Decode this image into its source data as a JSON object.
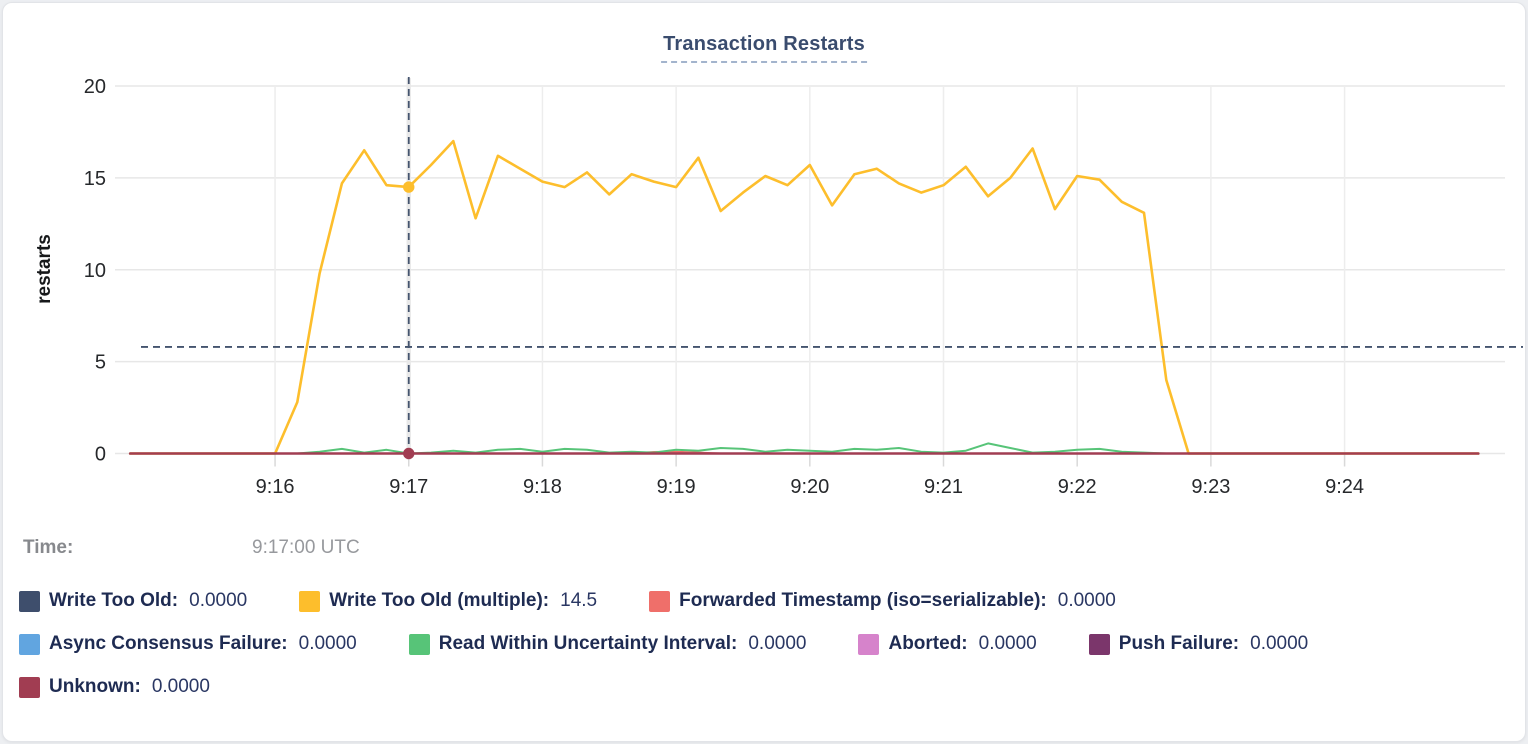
{
  "title": "Transaction Restarts",
  "tooltip": {
    "time_label": "Time:",
    "time_value": "9:17:00 UTC"
  },
  "legend": {
    "rows": [
      [
        {
          "label": "Write Too Old:",
          "value": "0.0000",
          "color": "#3E4E6C"
        },
        {
          "label": "Write Too Old (multiple):",
          "value": "14.5",
          "color": "#FDBE2C"
        },
        {
          "label": "Forwarded Timestamp (iso=serializable):",
          "value": "0.0000",
          "color": "#EF6F6A"
        }
      ],
      [
        {
          "label": "Async Consensus Failure:",
          "value": "0.0000",
          "color": "#61A5E0"
        },
        {
          "label": "Read Within Uncertainty Interval:",
          "value": "0.0000",
          "color": "#57C478"
        },
        {
          "label": "Aborted:",
          "value": "0.0000",
          "color": "#D683CB"
        },
        {
          "label": "Push Failure:",
          "value": "0.0000",
          "color": "#7B366B"
        }
      ],
      [
        {
          "label": "Unknown:",
          "value": "0.0000",
          "color": "#A13D52"
        }
      ]
    ]
  },
  "chart_data": {
    "type": "line",
    "title": "Transaction Restarts",
    "xlabel": "",
    "ylabel": "restarts",
    "ylim": [
      0,
      20
    ],
    "yticks": [
      0,
      5,
      10,
      15,
      20
    ],
    "xticks": [
      "9:16",
      "9:17",
      "9:18",
      "9:19",
      "9:20",
      "9:21",
      "9:22",
      "9:23",
      "9:24"
    ],
    "x_domain": [
      "9:14:54",
      "9:25:12"
    ],
    "grid": true,
    "legend_position": "bottom",
    "hline_value": 5.8,
    "hover": {
      "time": "9:17:00",
      "time_display": "9:17:00 UTC",
      "points": [
        {
          "series": "Write Too Old (multiple)",
          "value": 14.5
        },
        {
          "series": "Unknown",
          "value": 0
        }
      ]
    },
    "x": [
      "9:14:55",
      "9:15:00",
      "9:15:10",
      "9:15:20",
      "9:15:30",
      "9:15:40",
      "9:15:50",
      "9:16:00",
      "9:16:10",
      "9:16:20",
      "9:16:30",
      "9:16:40",
      "9:16:50",
      "9:17:00",
      "9:17:10",
      "9:17:20",
      "9:17:30",
      "9:17:40",
      "9:17:50",
      "9:18:00",
      "9:18:10",
      "9:18:20",
      "9:18:30",
      "9:18:40",
      "9:18:50",
      "9:19:00",
      "9:19:10",
      "9:19:20",
      "9:19:30",
      "9:19:40",
      "9:19:50",
      "9:20:00",
      "9:20:10",
      "9:20:20",
      "9:20:30",
      "9:20:40",
      "9:20:50",
      "9:21:00",
      "9:21:10",
      "9:21:20",
      "9:21:30",
      "9:21:40",
      "9:21:50",
      "9:22:00",
      "9:22:10",
      "9:22:20",
      "9:22:30",
      "9:22:40",
      "9:22:50",
      "9:23:00",
      "9:23:10",
      "9:23:20",
      "9:23:30",
      "9:23:40",
      "9:23:50",
      "9:24:00",
      "9:24:10",
      "9:24:20",
      "9:24:30",
      "9:24:40",
      "9:24:50",
      "9:25:00"
    ],
    "series": [
      {
        "name": "Write Too Old",
        "color": "#3E4E6C",
        "constant": 0
      },
      {
        "name": "Write Too Old (multiple)",
        "color": "#FDBE2C",
        "values": [
          0,
          0,
          0,
          0,
          0,
          0,
          0,
          0,
          2.8,
          9.8,
          14.7,
          16.5,
          14.6,
          14.5,
          15.7,
          17,
          12.8,
          16.2,
          15.5,
          14.8,
          14.5,
          15.3,
          14.1,
          15.2,
          14.8,
          14.5,
          16.1,
          13.2,
          14.2,
          15.1,
          14.6,
          15.7,
          13.5,
          15.2,
          15.5,
          14.7,
          14.2,
          14.6,
          15.6,
          14,
          15,
          16.6,
          13.3,
          15.1,
          14.9,
          13.7,
          13.1,
          4,
          0,
          0,
          0,
          0,
          0,
          0,
          0,
          0,
          0,
          0,
          0,
          0,
          0,
          0
        ]
      },
      {
        "name": "Forwarded Timestamp (iso=serializable)",
        "color": "#EF6F6A",
        "constant": 0,
        "overrides": {
          "9:18:50": 0.08,
          "9:19:00": 0.1,
          "9:19:10": 0.05
        }
      },
      {
        "name": "Async Consensus Failure",
        "color": "#61A5E0",
        "constant": 0
      },
      {
        "name": "Read Within Uncertainty Interval",
        "color": "#57C478",
        "values": [
          0,
          0,
          0,
          0,
          0,
          0,
          0,
          0,
          0,
          0.1,
          0.25,
          0.05,
          0.2,
          0,
          0.05,
          0.15,
          0.05,
          0.2,
          0.25,
          0.1,
          0.25,
          0.2,
          0.05,
          0.1,
          0.05,
          0.2,
          0.15,
          0.3,
          0.25,
          0.1,
          0.2,
          0.15,
          0.1,
          0.25,
          0.2,
          0.3,
          0.1,
          0.05,
          0.15,
          0.55,
          0.3,
          0.05,
          0.1,
          0.2,
          0.25,
          0.1,
          0.05,
          0,
          0,
          0,
          0,
          0,
          0,
          0,
          0,
          0,
          0,
          0,
          0,
          0,
          0,
          0
        ]
      },
      {
        "name": "Aborted",
        "color": "#D683CB",
        "constant": 0
      },
      {
        "name": "Push Failure",
        "color": "#7B366B",
        "constant": 0
      },
      {
        "name": "Unknown",
        "color": "#A13D52",
        "constant": 0
      }
    ]
  }
}
